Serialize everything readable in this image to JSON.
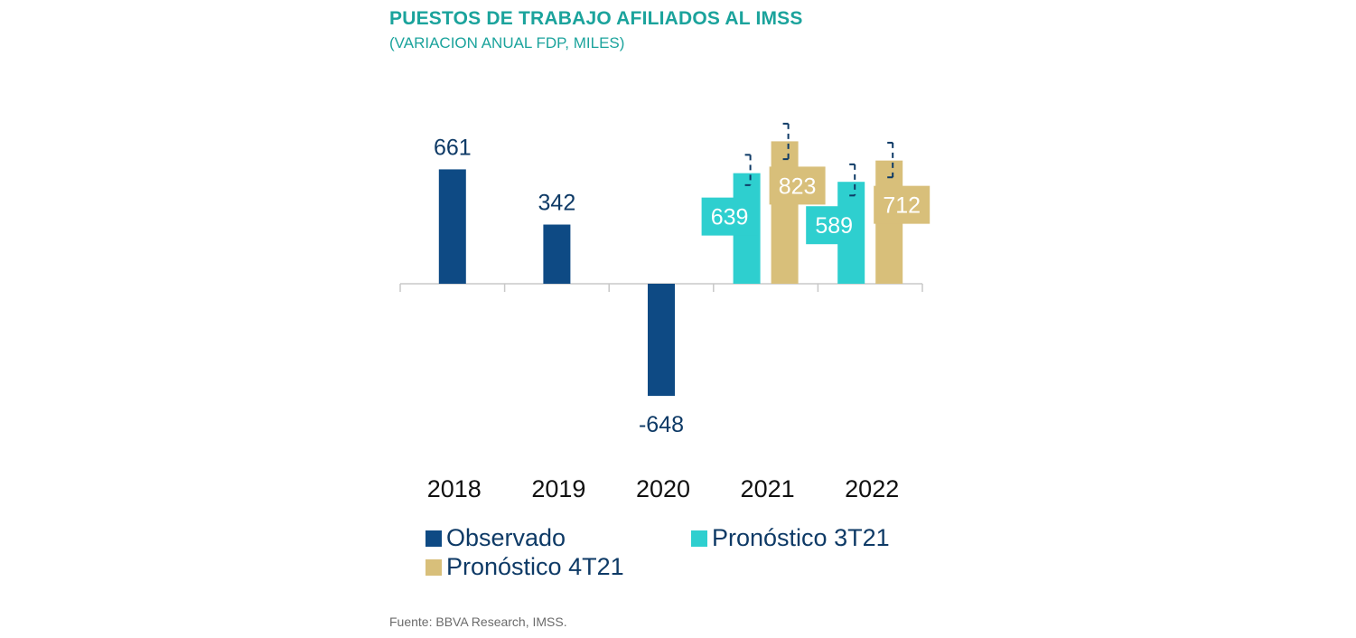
{
  "header": {
    "title": "PUESTOS DE TRABAJO AFILIADOS AL IMSS",
    "subtitle": "(VARIACION ANUAL FDP, MILES)"
  },
  "footer": {
    "source": "Fuente: BBVA Research, IMSS."
  },
  "colors": {
    "observado": "#0e4a84",
    "pronostico_3t21": "#2ecfcf",
    "pronostico_4t21": "#d8bf7a",
    "label_text": "#0e3a66"
  },
  "chart_data": {
    "type": "bar",
    "categories": [
      "2018",
      "2019",
      "2020",
      "2021",
      "2022"
    ],
    "series": [
      {
        "name": "Observado",
        "values": [
          661,
          342,
          -648,
          null,
          null
        ]
      },
      {
        "name": "Pronóstico 3T21",
        "values": [
          null,
          null,
          null,
          639,
          589
        ]
      },
      {
        "name": "Pronóstico 4T21",
        "values": [
          null,
          null,
          null,
          823,
          712
        ]
      }
    ],
    "data_labels": [
      {
        "category": "2018",
        "series": "Observado",
        "text": "661"
      },
      {
        "category": "2019",
        "series": "Observado",
        "text": "342"
      },
      {
        "category": "2020",
        "series": "Observado",
        "text": "-648"
      },
      {
        "category": "2021",
        "series": "Pronóstico 3T21",
        "text": "639"
      },
      {
        "category": "2021",
        "series": "Pronóstico 4T21",
        "text": "823"
      },
      {
        "category": "2022",
        "series": "Pronóstico 3T21",
        "text": "589"
      },
      {
        "category": "2022",
        "series": "Pronóstico 4T21",
        "text": "712"
      }
    ],
    "error_bars": [
      {
        "category": "2021",
        "series": "Pronóstico 3T21",
        "low": 570,
        "high": 745
      },
      {
        "category": "2021",
        "series": "Pronóstico 4T21",
        "low": 720,
        "high": 925
      },
      {
        "category": "2022",
        "series": "Pronóstico 3T21",
        "low": 510,
        "high": 690
      },
      {
        "category": "2022",
        "series": "Pronóstico 4T21",
        "low": 615,
        "high": 815
      }
    ],
    "ylim": [
      -700,
      900
    ],
    "grid": false,
    "legend": {
      "position": "bottom"
    },
    "xlabel": "",
    "ylabel": ""
  }
}
